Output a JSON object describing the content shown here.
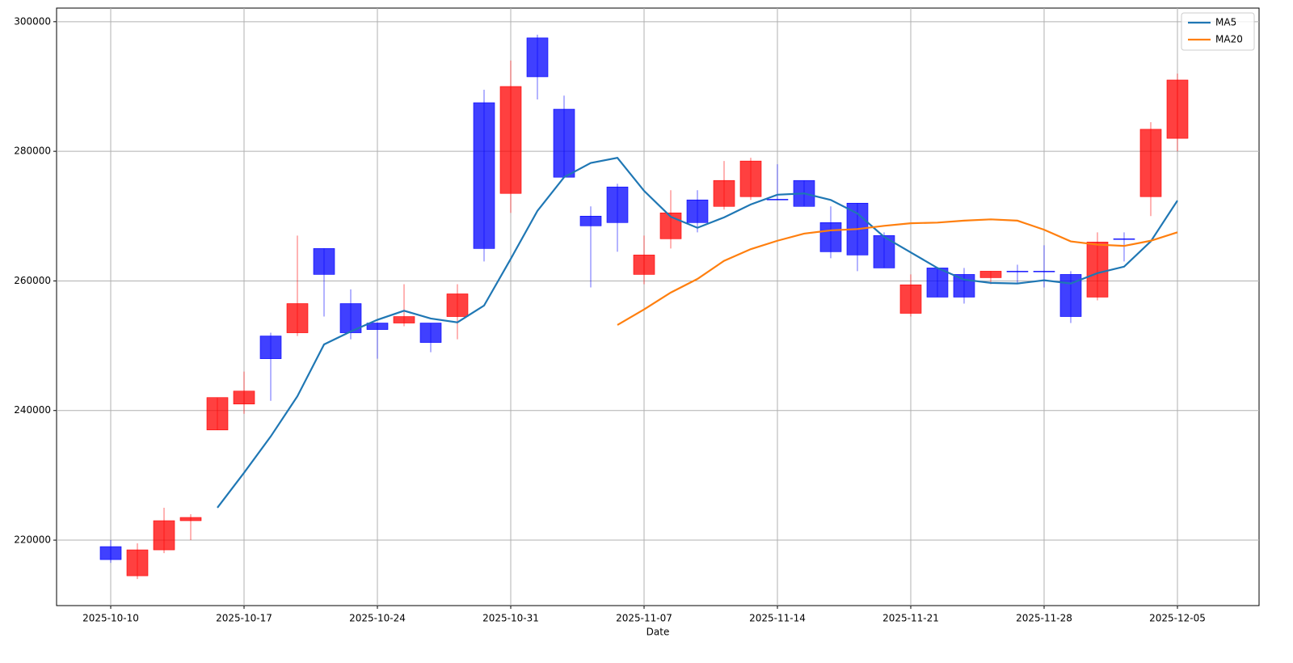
{
  "chart_data": {
    "type": "candlestick",
    "xlabel": "Date",
    "categories": [
      "2025-10-10",
      null,
      null,
      null,
      null,
      "2025-10-17",
      null,
      null,
      null,
      null,
      "2025-10-24",
      null,
      null,
      null,
      null,
      "2025-10-31",
      null,
      null,
      null,
      null,
      "2025-11-07",
      null,
      null,
      null,
      null,
      "2025-11-14",
      null,
      null,
      null,
      null,
      "2025-11-21",
      null,
      null,
      null,
      null,
      "2025-11-28",
      null,
      null,
      null,
      null,
      "2025-12-05"
    ],
    "open": [
      219000,
      214500,
      218500,
      223000,
      237000,
      241000,
      251500,
      252000,
      265000,
      256500,
      253500,
      253500,
      253500,
      254500,
      287500,
      273500,
      297500,
      286500,
      270000,
      274500,
      261000,
      266500,
      272500,
      271500,
      273000,
      272600,
      275500,
      269000,
      272000,
      267000,
      255000,
      262000,
      261000,
      260500,
      261500,
      261500,
      261000,
      257500,
      266500,
      273000,
      282000
    ],
    "high": [
      220000,
      219500,
      225000,
      224000,
      242000,
      246000,
      252000,
      267000,
      265000,
      258700,
      253500,
      259500,
      253500,
      259500,
      289500,
      294000,
      298000,
      288600,
      271500,
      275000,
      267000,
      274000,
      274000,
      278500,
      279000,
      278000,
      275500,
      271500,
      272000,
      267500,
      261000,
      262000,
      262000,
      261500,
      262500,
      265500,
      261500,
      267500,
      267500,
      284500,
      292000
    ],
    "low": [
      216500,
      214000,
      218000,
      220000,
      237000,
      239500,
      241500,
      251500,
      254500,
      251000,
      248000,
      253000,
      249000,
      251000,
      263000,
      270500,
      288000,
      276000,
      259000,
      264500,
      259500,
      265000,
      267500,
      271000,
      272500,
      272500,
      271500,
      263500,
      261500,
      262000,
      254500,
      257500,
      256500,
      259500,
      259500,
      259000,
      253500,
      257000,
      263000,
      270000,
      280000
    ],
    "close": [
      217000,
      218500,
      223000,
      223500,
      242000,
      243000,
      248000,
      256500,
      261000,
      252000,
      252500,
      254500,
      250500,
      258000,
      265000,
      290000,
      291500,
      276000,
      268500,
      269000,
      264000,
      270500,
      269000,
      275500,
      278500,
      272500,
      271500,
      264500,
      264000,
      262000,
      259400,
      257500,
      257500,
      261500,
      261400,
      261400,
      254500,
      266000,
      266400,
      283400,
      291000
    ],
    "up_color": "#ff0000",
    "down_color": "#0000ff",
    "series": [
      {
        "name": "MA5",
        "color": "#1f77b4",
        "values": [
          null,
          null,
          null,
          null,
          225000,
          230400,
          236000,
          242200,
          250200,
          252200,
          254000,
          255400,
          254200,
          253600,
          256200,
          263400,
          270800,
          276000,
          278200,
          279000,
          273900,
          269900,
          268200,
          269800,
          271800,
          273300,
          273500,
          272500,
          270400,
          266800,
          264400,
          262000,
          260200,
          259700,
          259600,
          260100,
          259600,
          261200,
          262200,
          266100,
          272400
        ]
      },
      {
        "name": "MA20",
        "color": "#ff7f0e",
        "values": [
          null,
          null,
          null,
          null,
          null,
          null,
          null,
          null,
          null,
          null,
          null,
          null,
          null,
          null,
          null,
          null,
          null,
          null,
          null,
          253200,
          255600,
          258200,
          260300,
          263100,
          264900,
          266200,
          267300,
          267800,
          268000,
          268500,
          268900,
          269000,
          269300,
          269500,
          269300,
          267900,
          266100,
          265600,
          265400,
          266200,
          267500
        ]
      }
    ],
    "ylim": [
      209900,
      302100
    ],
    "yticks": [
      220000,
      240000,
      260000,
      280000,
      300000
    ],
    "grid": true,
    "legend": "upper right"
  }
}
